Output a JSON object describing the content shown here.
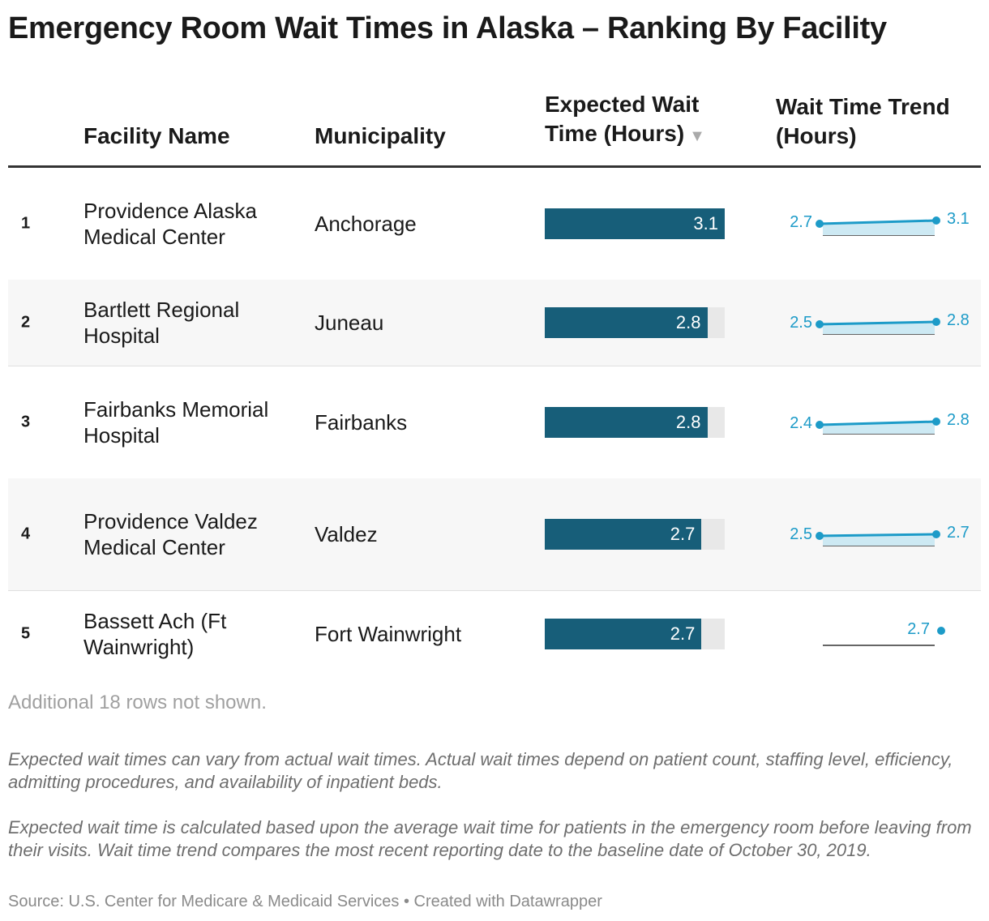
{
  "title": "Emergency Room Wait Times in Alaska – Ranking By Facility",
  "columns": {
    "facility": "Facility Name",
    "municipality": "Municipality",
    "expected_line1": "Expected Wait",
    "expected_line2": "Time (Hours)",
    "sort_indicator": "▼",
    "trend_line1": "Wait Time Trend",
    "trend_line2": "(Hours)"
  },
  "chart_data": {
    "type": "table",
    "bar_max": 3.1,
    "rows": [
      {
        "rank": "1",
        "facility": "Providence Alaska Medical Center",
        "municipality": "Anchorage",
        "expected": 3.1,
        "expected_label": "3.1",
        "trend": [
          2.7,
          3.1
        ],
        "trend_labels": [
          "2.7",
          "3.1"
        ]
      },
      {
        "rank": "2",
        "facility": "Bartlett Regional Hospital",
        "municipality": "Juneau",
        "expected": 2.8,
        "expected_label": "2.8",
        "trend": [
          2.5,
          2.8
        ],
        "trend_labels": [
          "2.5",
          "2.8"
        ]
      },
      {
        "rank": "3",
        "facility": "Fairbanks Memorial Hospital",
        "municipality": "Fairbanks",
        "expected": 2.8,
        "expected_label": "2.8",
        "trend": [
          2.4,
          2.8
        ],
        "trend_labels": [
          "2.4",
          "2.8"
        ]
      },
      {
        "rank": "4",
        "facility": "Providence Valdez Medical Center",
        "municipality": "Valdez",
        "expected": 2.7,
        "expected_label": "2.7",
        "trend": [
          2.5,
          2.7
        ],
        "trend_labels": [
          "2.5",
          "2.7"
        ]
      },
      {
        "rank": "5",
        "facility": "Bassett Ach (Ft Wainwright)",
        "municipality": "Fort Wainwright",
        "expected": 2.7,
        "expected_label": "2.7",
        "trend": [
          2.7
        ],
        "trend_labels": [
          "2.7"
        ]
      }
    ]
  },
  "footer": {
    "rows_hidden": "Additional 18 rows not shown.",
    "note1": "Expected wait times can vary from actual wait times. Actual wait times depend on patient count, staffing level, efficiency, admitting procedures, and availability of inpatient beds.",
    "note2": "Expected wait time is calculated based upon the average wait time for patients in the emergency room before leaving from their visits. Wait time trend compares the most recent reporting date to the baseline date of October 30, 2019.",
    "source": "Source: U.S. Center for Medicare & Medicaid Services • Created with Datawrapper"
  },
  "colors": {
    "bar": "#175e79",
    "bar_track": "#e8e8e8",
    "trend_line": "#1d9bc8",
    "trend_fill": "#cde9f3",
    "trend_baseline": "#333333"
  }
}
